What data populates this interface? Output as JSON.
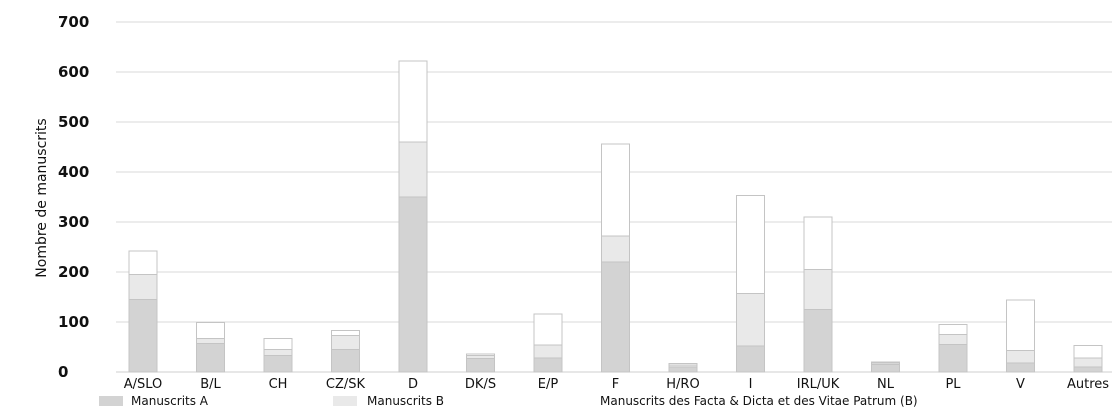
{
  "chart_data": {
    "type": "bar",
    "stacked": true,
    "title": "",
    "xlabel": "",
    "ylabel": "Nombre de manuscrits",
    "ylim": [
      0,
      700
    ],
    "yticks": [
      0,
      100,
      200,
      300,
      400,
      500,
      600,
      700
    ],
    "grid": true,
    "legend_position": "bottom",
    "categories": [
      "A/SLO",
      "B/L",
      "CH",
      "CZ/SK",
      "D",
      "DK/S",
      "E/P",
      "F",
      "H/RO",
      "I",
      "IRL/UK",
      "NL",
      "PL",
      "V",
      "Autres"
    ],
    "series": [
      {
        "name": "Manuscrits A",
        "color": "#d3d3d3",
        "values": [
          145,
          57,
          33,
          45,
          350,
          27,
          28,
          220,
          10,
          52,
          125,
          15,
          55,
          18,
          10
        ]
      },
      {
        "name": "Manuscrits B",
        "color": "#e9e9e9",
        "values": [
          50,
          10,
          12,
          28,
          110,
          6,
          26,
          52,
          4,
          105,
          80,
          3,
          20,
          25,
          18
        ]
      },
      {
        "name": "Manuscrits des Facta & Dicta et des Vitae Patrum (B)",
        "color": "#ffffff",
        "values": [
          47,
          32,
          22,
          10,
          162,
          3,
          62,
          184,
          3,
          196,
          105,
          2,
          20,
          101,
          25
        ]
      }
    ]
  }
}
